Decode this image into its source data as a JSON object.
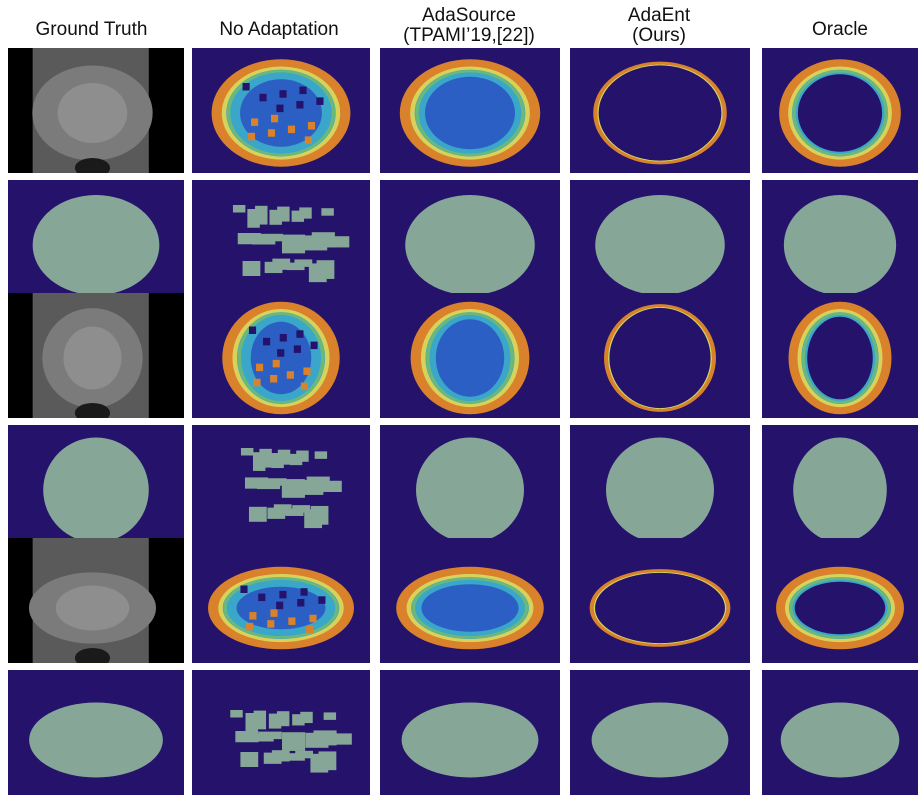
{
  "columns": [
    {
      "id": "ground-truth",
      "title": "Ground Truth"
    },
    {
      "id": "no-adaptation",
      "title": "No Adaptation"
    },
    {
      "id": "adasource",
      "title": "AdaSource",
      "subtitle": "(TPAMI’19,[22])"
    },
    {
      "id": "adaent",
      "title": "AdaEnt",
      "subtitle": "(Ours)"
    },
    {
      "id": "oracle",
      "title": "Oracle"
    }
  ],
  "rows": [
    {
      "id": "case-1",
      "kind": "entropy-map"
    },
    {
      "id": "case-1",
      "kind": "segmentation-mask"
    },
    {
      "id": "case-2",
      "kind": "entropy-map"
    },
    {
      "id": "case-2",
      "kind": "segmentation-mask"
    },
    {
      "id": "case-3",
      "kind": "entropy-map"
    },
    {
      "id": "case-3",
      "kind": "segmentation-mask"
    }
  ],
  "colors": {
    "background": "#24126b",
    "mask": "#86a697",
    "ring_orange": "#d9822b",
    "ring_yellow": "#d8d25a",
    "ring_green": "#6bb87a",
    "ring_cyan": "#3aa6c9",
    "ring_blue": "#2c5fc4",
    "mri_dark": "#0a0a0a",
    "mri_mid": "#7b7b7b"
  }
}
